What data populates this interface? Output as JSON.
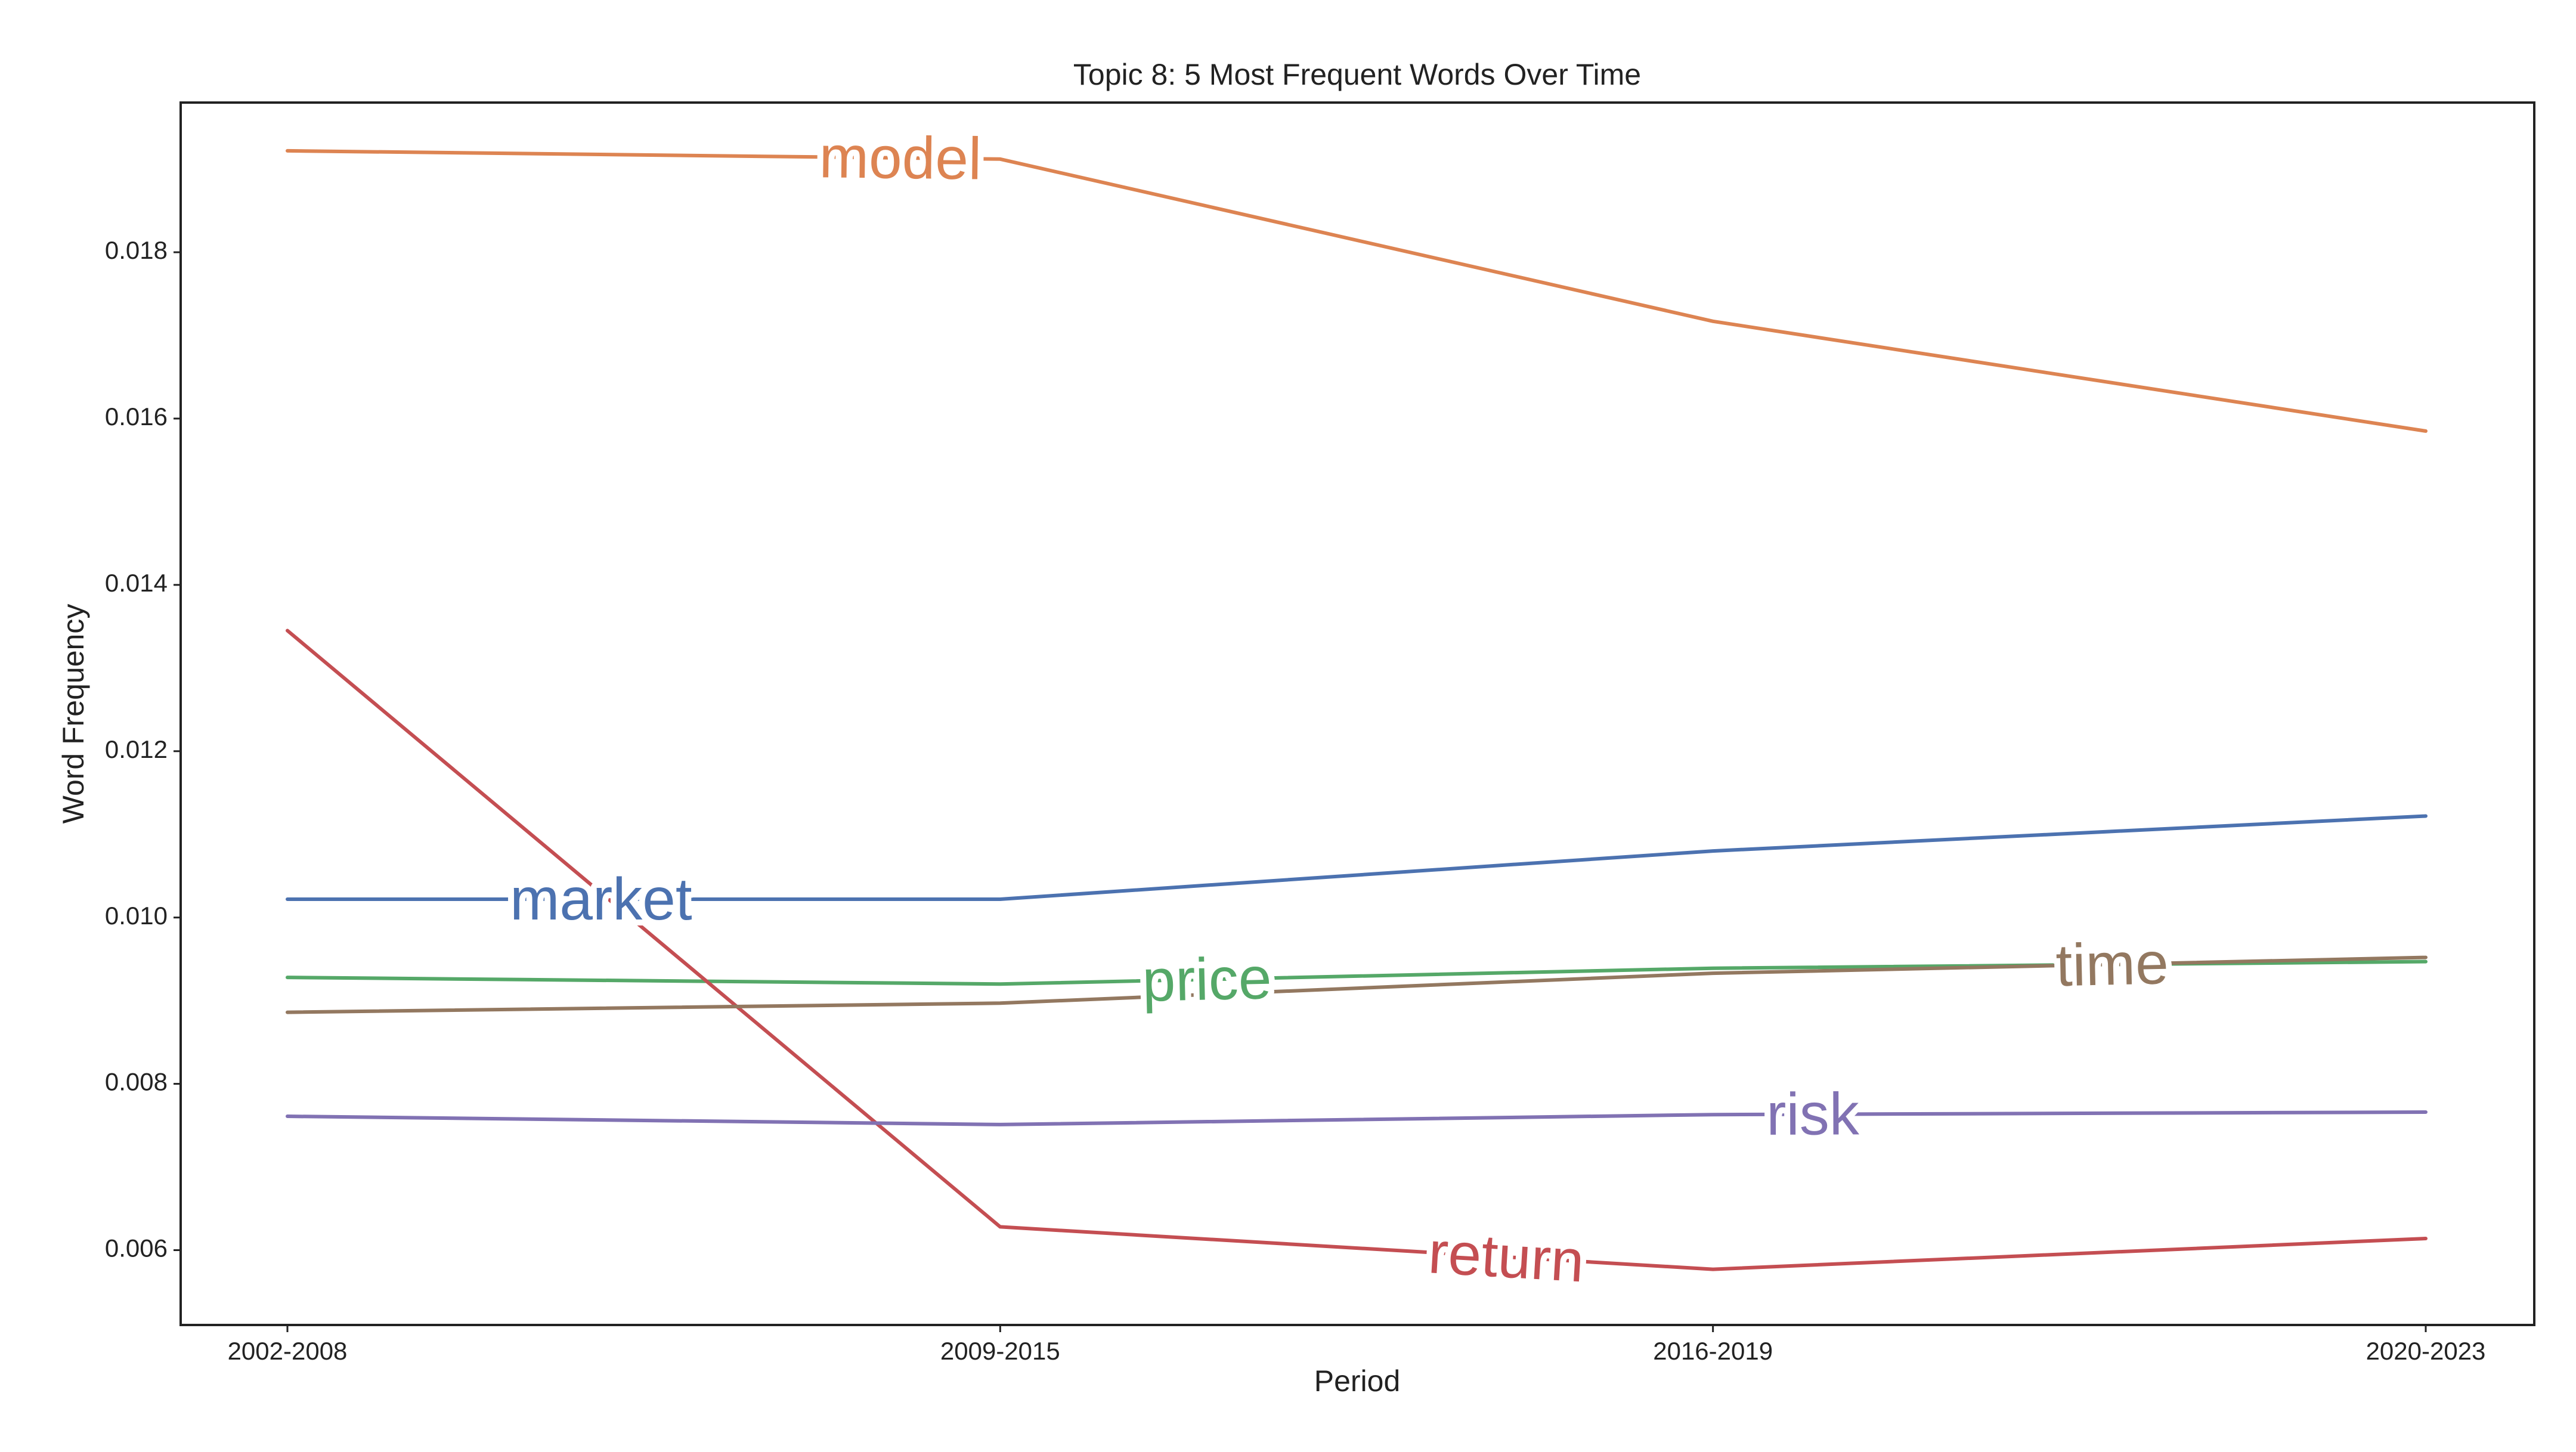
{
  "chart_data": {
    "type": "line",
    "title": "Topic 8: 5 Most Frequent Words Over Time",
    "xlabel": "Period",
    "ylabel": "Word Frequency",
    "categories": [
      "2002-2008",
      "2009-2015",
      "2016-2019",
      "2020-2023"
    ],
    "yticks": [
      "0.006",
      "0.008",
      "0.010",
      "0.012",
      "0.014",
      "0.016",
      "0.018"
    ],
    "ylim": [
      0.0051,
      0.0198
    ],
    "grid": false,
    "legend": "inline labels on lines",
    "series": [
      {
        "name": "market",
        "color": "#4c72b0",
        "values": [
          0.01022,
          0.01022,
          0.0108,
          0.01122
        ]
      },
      {
        "name": "model",
        "color": "#dd8452",
        "values": [
          0.01922,
          0.01912,
          0.01717,
          0.01585
        ]
      },
      {
        "name": "price",
        "color": "#55a868",
        "values": [
          0.00928,
          0.0092,
          0.00939,
          0.00947
        ]
      },
      {
        "name": "return",
        "color": "#c44e52",
        "values": [
          0.01345,
          0.00628,
          0.00577,
          0.00614
        ]
      },
      {
        "name": "risk",
        "color": "#8172b3",
        "values": [
          0.00761,
          0.00751,
          0.00763,
          0.00766
        ]
      },
      {
        "name": "time",
        "color": "#937860",
        "values": [
          0.00886,
          0.00897,
          0.00933,
          0.00952
        ]
      }
    ]
  }
}
